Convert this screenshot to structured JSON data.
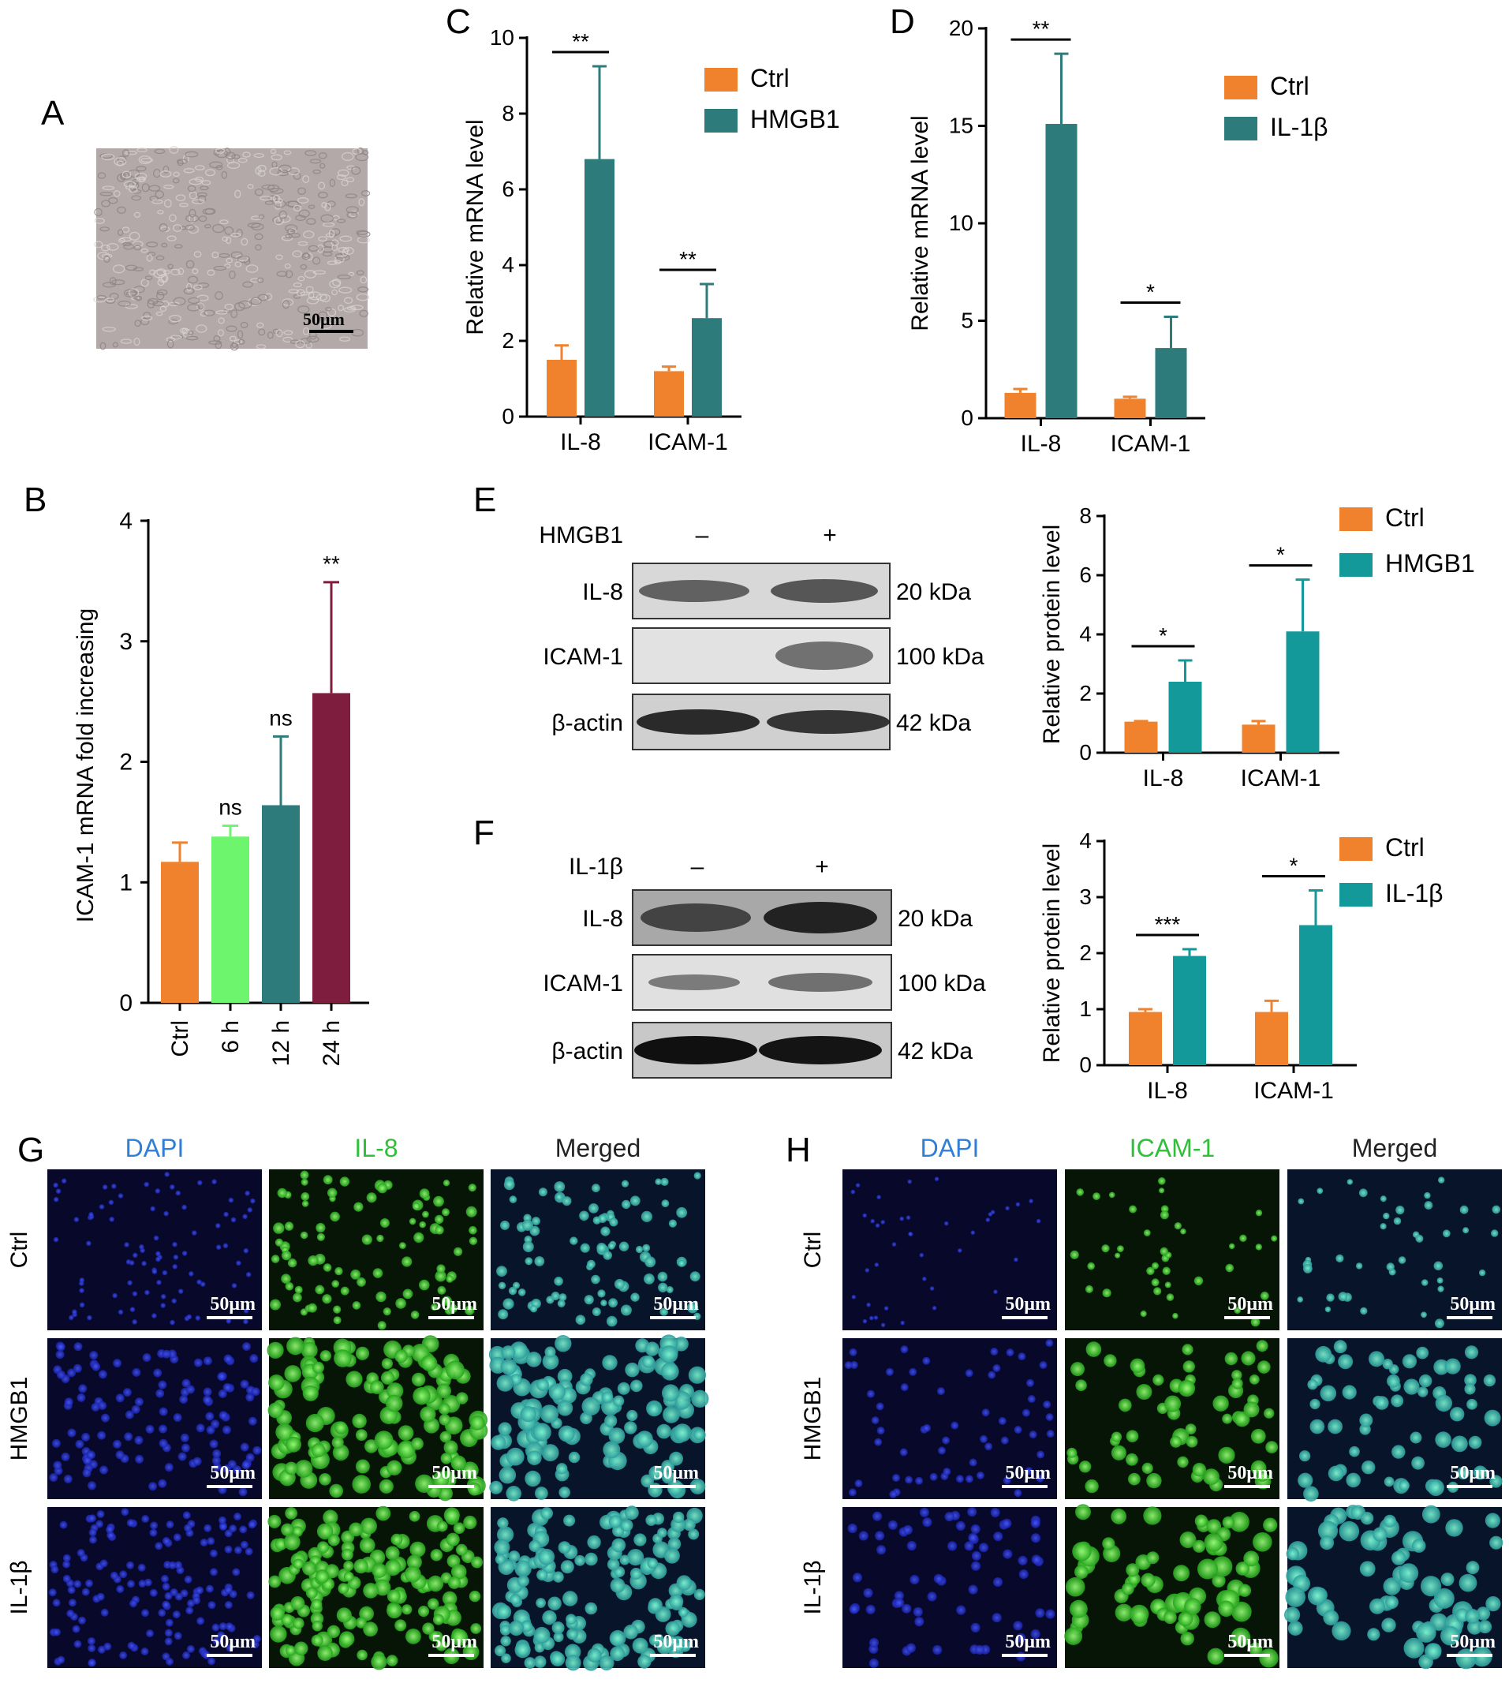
{
  "colors": {
    "ctrl": "#F0822D",
    "teal": "#2E7B7B",
    "teal2": "#14999A",
    "lightgreen": "#6EF56E",
    "maroon": "#7F1D3E",
    "dapi": "#2f7fd6",
    "green": "#2fbf3a"
  },
  "panels": {
    "A": {
      "letter": "A",
      "scale": "50μm"
    },
    "B": {
      "letter": "B"
    },
    "C": {
      "letter": "C"
    },
    "D": {
      "letter": "D"
    },
    "E": {
      "letter": "E",
      "treatment": "HMGB1",
      "minus": "–",
      "plus": "+",
      "rows": [
        {
          "label": "IL-8",
          "kda": "20 kDa"
        },
        {
          "label": "ICAM-1",
          "kda": "100 kDa"
        },
        {
          "label": "β-actin",
          "kda": "42 kDa"
        }
      ]
    },
    "F": {
      "letter": "F",
      "treatment": "IL-1β",
      "minus": "–",
      "plus": "+",
      "rows": [
        {
          "label": "IL-8",
          "kda": "20 kDa"
        },
        {
          "label": "ICAM-1",
          "kda": "100 kDa"
        },
        {
          "label": "β-actin",
          "kda": "42 kDa"
        }
      ]
    },
    "G": {
      "letter": "G",
      "cols": [
        "DAPI",
        "IL-8",
        "Merged"
      ],
      "rows": [
        "Ctrl",
        "HMGB1",
        "IL-1β"
      ],
      "scale": "50μm"
    },
    "H": {
      "letter": "H",
      "cols": [
        "DAPI",
        "ICAM-1",
        "Merged"
      ],
      "rows": [
        "Ctrl",
        "HMGB1",
        "IL-1β"
      ],
      "scale": "50μm"
    }
  },
  "chart_data": [
    {
      "panel": "B",
      "type": "bar",
      "ylabel": "ICAM-1 mRNA fold increasing",
      "categories": [
        "Ctrl",
        "6 h",
        "12 h",
        "24 h"
      ],
      "values": [
        1.17,
        1.38,
        1.64,
        2.57
      ],
      "errors": [
        0.16,
        0.09,
        0.57,
        0.92
      ],
      "annotations": [
        "",
        "ns",
        "ns",
        "**"
      ],
      "ylim": [
        0,
        4
      ],
      "yticks": [
        0,
        1,
        2,
        3,
        4
      ]
    },
    {
      "panel": "C",
      "type": "bar",
      "ylabel": "Relative mRNA level",
      "categories": [
        "IL-8",
        "ICAM-1"
      ],
      "series": [
        {
          "name": "Ctrl",
          "values": [
            1.5,
            1.2
          ],
          "errors": [
            0.38,
            0.12
          ]
        },
        {
          "name": "HMGB1",
          "values": [
            6.8,
            2.6
          ],
          "errors": [
            2.45,
            0.9
          ]
        }
      ],
      "significance": [
        "**",
        "**"
      ],
      "ylim": [
        0,
        10
      ],
      "yticks": [
        0,
        2,
        4,
        6,
        8,
        10
      ]
    },
    {
      "panel": "D",
      "type": "bar",
      "ylabel": "Relative mRNA level",
      "categories": [
        "IL-8",
        "ICAM-1"
      ],
      "series": [
        {
          "name": "Ctrl",
          "values": [
            1.3,
            1.0
          ],
          "errors": [
            0.2,
            0.1
          ]
        },
        {
          "name": "IL-1β",
          "values": [
            15.1,
            3.6
          ],
          "errors": [
            3.6,
            1.6
          ]
        }
      ],
      "significance": [
        "**",
        "*"
      ],
      "ylim": [
        0,
        20
      ],
      "yticks": [
        0,
        5,
        10,
        15,
        20
      ]
    },
    {
      "panel": "E",
      "type": "bar",
      "ylabel": "Relative protein level",
      "categories": [
        "IL-8",
        "ICAM-1"
      ],
      "series": [
        {
          "name": "Ctrl",
          "values": [
            1.05,
            0.95
          ],
          "errors": [
            0.02,
            0.12
          ]
        },
        {
          "name": "HMGB1",
          "values": [
            2.4,
            4.1
          ],
          "errors": [
            0.72,
            1.75
          ]
        }
      ],
      "significance": [
        "*",
        "*"
      ],
      "ylim": [
        0,
        8
      ],
      "yticks": [
        0,
        2,
        4,
        6,
        8
      ]
    },
    {
      "panel": "F",
      "type": "bar",
      "ylabel": "Relative protein level",
      "categories": [
        "IL-8",
        "ICAM-1"
      ],
      "series": [
        {
          "name": "Ctrl",
          "values": [
            0.95,
            0.95
          ],
          "errors": [
            0.05,
            0.2
          ]
        },
        {
          "name": "IL-1β",
          "values": [
            1.95,
            2.5
          ],
          "errors": [
            0.12,
            0.62
          ]
        }
      ],
      "significance": [
        "***",
        "*"
      ],
      "ylim": [
        0,
        4
      ],
      "yticks": [
        0,
        1,
        2,
        3,
        4
      ]
    }
  ]
}
